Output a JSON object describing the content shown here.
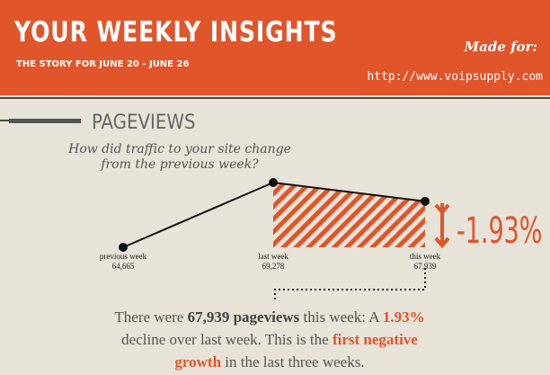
{
  "header": {
    "title": "YOUR WEEKLY INSIGHTS",
    "subtitle": "THE STORY FOR JUNE 20 - JUNE 26",
    "made_for": "Made for:",
    "url": "http://www.voipsupply.com"
  },
  "section": {
    "title": "PAGEVIEWS",
    "question": [
      "How did traffic to your site change",
      "from the previous week?"
    ]
  },
  "chart_data": {
    "type": "line",
    "categories": [
      "previous week",
      "last week",
      "this week"
    ],
    "values": [
      64665,
      69278,
      67939
    ],
    "value_labels": [
      "64,665",
      "69,278",
      "67,939"
    ],
    "color": "#111111",
    "accent": "#e0552a",
    "change_label": "-1.93%"
  },
  "summary": {
    "segments": [
      "There were ",
      "67,939 pageviews",
      " this week: A ",
      "1.93%",
      " decline over last week. This is the ",
      "first negative growth",
      " in the last three weeks."
    ],
    "styles": [
      "plain",
      "bold",
      "plain",
      "accent",
      "plain",
      "accent",
      "plain"
    ]
  }
}
